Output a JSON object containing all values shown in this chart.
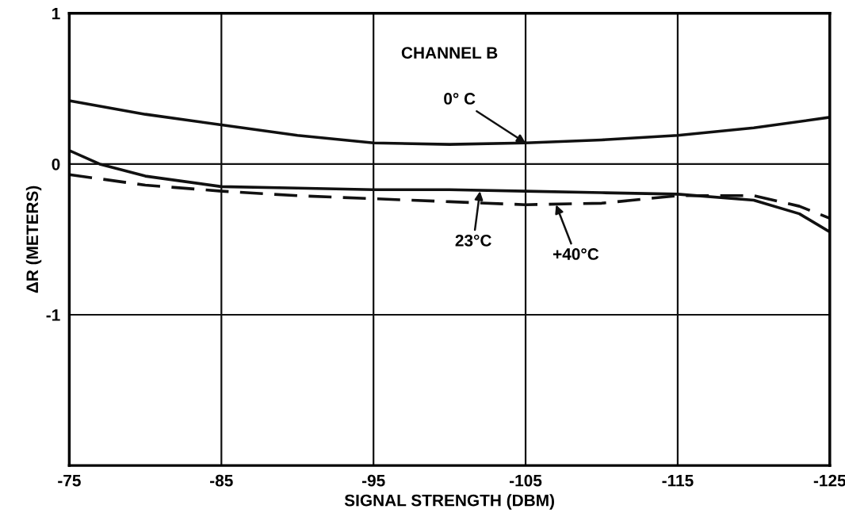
{
  "chart_data": {
    "type": "line",
    "xlabel": "SIGNAL STRENGTH (DBM)",
    "ylabel": "ΔR (METERS)",
    "xlim": [
      -75,
      -125
    ],
    "xticks": [
      -75,
      -85,
      -95,
      -105,
      -115,
      -125
    ],
    "ylim": [
      -2,
      1
    ],
    "yticks": [
      1,
      0,
      -1
    ],
    "grid": true,
    "legend": false,
    "marker": "none",
    "series": [
      {
        "color": "#111111",
        "line_style": "solid",
        "x": [
          -75,
          -80,
          -85,
          -90,
          -95,
          -100,
          -105,
          -110,
          -115,
          -120,
          -125
        ],
        "values": [
          0.42,
          0.33,
          0.26,
          0.19,
          0.14,
          0.13,
          0.14,
          0.16,
          0.19,
          0.24,
          0.31
        ]
      },
      {
        "color": "#111111",
        "line_style": "solid",
        "x": [
          -75,
          -77,
          -80,
          -85,
          -90,
          -95,
          -100,
          -105,
          -110,
          -115,
          -120,
          -123,
          -125
        ],
        "values": [
          0.09,
          0.0,
          -0.08,
          -0.15,
          -0.16,
          -0.17,
          -0.17,
          -0.18,
          -0.19,
          -0.2,
          -0.24,
          -0.33,
          -0.45
        ]
      },
      {
        "color": "#111111",
        "line_style": "dashed",
        "x": [
          -75,
          -80,
          -85,
          -90,
          -95,
          -100,
          -105,
          -110,
          -115,
          -120,
          -123,
          -125
        ],
        "values": [
          -0.07,
          -0.14,
          -0.18,
          -0.21,
          -0.23,
          -0.25,
          -0.27,
          -0.26,
          -0.21,
          -0.21,
          -0.28,
          -0.36
        ]
      }
    ],
    "annotations": [
      "CHANNEL B",
      {
        "text": "0° C",
        "x": -105,
        "y": 0.14
      },
      {
        "text": "23°C",
        "x": -102,
        "y": -0.18
      },
      {
        "text": "+40°C",
        "x": -107,
        "y": -0.27
      }
    ]
  }
}
